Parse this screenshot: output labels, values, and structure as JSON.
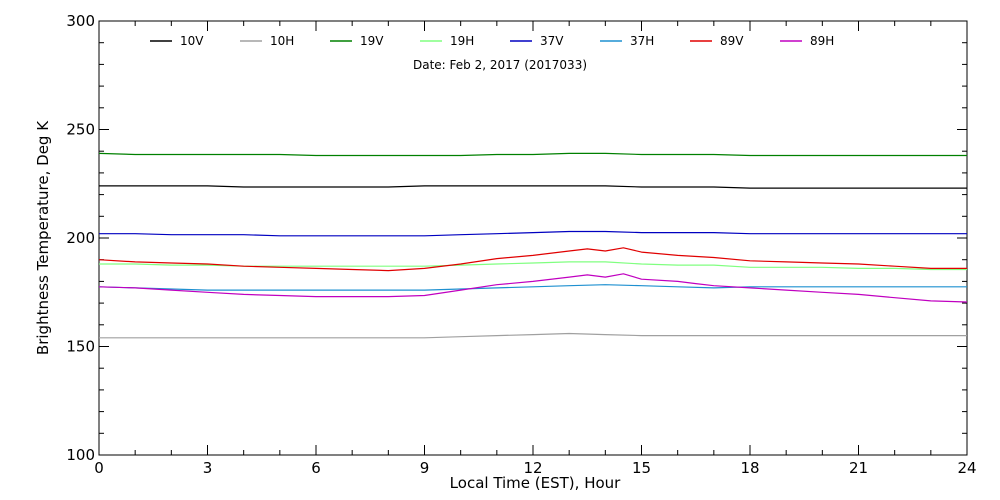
{
  "chart_data": {
    "type": "line",
    "title": "",
    "date_text": "Date: Feb  2, 2017 (2017033)",
    "xlabel": "Local Time (EST), Hour",
    "ylabel": "Brightness Temperature, Deg K",
    "xlim": [
      0,
      24
    ],
    "ylim": [
      100,
      300
    ],
    "xticks": [
      0,
      3,
      6,
      9,
      12,
      15,
      18,
      21,
      24
    ],
    "yticks": [
      100,
      150,
      200,
      250,
      300
    ],
    "grid": false,
    "legend_position": "top",
    "series": [
      {
        "name": "10V",
        "color": "#000000",
        "x": [
          0,
          1,
          2,
          3,
          4,
          5,
          6,
          7,
          8,
          9,
          10,
          11,
          12,
          13,
          14,
          15,
          16,
          17,
          18,
          19,
          20,
          21,
          22,
          23,
          24
        ],
        "y": [
          224,
          224,
          224,
          224,
          223.5,
          223.5,
          223.5,
          223.5,
          223.5,
          224,
          224,
          224,
          224,
          224,
          224,
          223.5,
          223.5,
          223.5,
          223,
          223,
          223,
          223,
          223,
          223,
          223
        ]
      },
      {
        "name": "10H",
        "color": "#a0a0a0",
        "x": [
          0,
          1,
          2,
          3,
          4,
          5,
          6,
          7,
          8,
          9,
          10,
          11,
          12,
          13,
          14,
          15,
          16,
          17,
          18,
          19,
          20,
          21,
          22,
          23,
          24
        ],
        "y": [
          154,
          154,
          154,
          154,
          154,
          154,
          154,
          154,
          154,
          154,
          154.5,
          155,
          155.5,
          156,
          155.5,
          155,
          155,
          155,
          155,
          155,
          155,
          155,
          155,
          155,
          155
        ]
      },
      {
        "name": "19V",
        "color": "#008000",
        "x": [
          0,
          1,
          2,
          3,
          4,
          5,
          6,
          7,
          8,
          9,
          10,
          11,
          12,
          13,
          14,
          15,
          16,
          17,
          18,
          19,
          20,
          21,
          22,
          23,
          24
        ],
        "y": [
          239,
          238.5,
          238.5,
          238.5,
          238.5,
          238.5,
          238,
          238,
          238,
          238,
          238,
          238.5,
          238.5,
          239,
          239,
          238.5,
          238.5,
          238.5,
          238,
          238,
          238,
          238,
          238,
          238,
          238
        ]
      },
      {
        "name": "19H",
        "color": "#80ff80",
        "x": [
          0,
          1,
          2,
          3,
          4,
          5,
          6,
          7,
          8,
          9,
          10,
          11,
          12,
          13,
          14,
          15,
          16,
          17,
          18,
          19,
          20,
          21,
          22,
          23,
          24
        ],
        "y": [
          188,
          188,
          187.5,
          187.5,
          187,
          187,
          187,
          187,
          187,
          187,
          187.5,
          188,
          188.5,
          189,
          189,
          188,
          187.5,
          187.5,
          186.5,
          186.5,
          186.5,
          186,
          186,
          185.5,
          185.5
        ]
      },
      {
        "name": "37V",
        "color": "#0000c0",
        "x": [
          0,
          1,
          2,
          3,
          4,
          5,
          6,
          7,
          8,
          9,
          10,
          11,
          12,
          13,
          14,
          15,
          16,
          17,
          18,
          19,
          20,
          21,
          22,
          23,
          24
        ],
        "y": [
          202,
          202,
          201.5,
          201.5,
          201.5,
          201,
          201,
          201,
          201,
          201,
          201.5,
          202,
          202.5,
          203,
          203,
          202.5,
          202.5,
          202.5,
          202,
          202,
          202,
          202,
          202,
          202,
          202
        ]
      },
      {
        "name": "37H",
        "color": "#1e90d0",
        "x": [
          0,
          1,
          2,
          3,
          4,
          5,
          6,
          7,
          8,
          9,
          10,
          11,
          12,
          13,
          14,
          15,
          16,
          17,
          18,
          19,
          20,
          21,
          22,
          23,
          24
        ],
        "y": [
          177.5,
          177,
          176.5,
          176,
          176,
          176,
          176,
          176,
          176,
          176,
          176.5,
          177,
          177.5,
          178,
          178.5,
          178,
          177.5,
          177,
          177.5,
          177.5,
          177.5,
          177.5,
          177.5,
          177.5,
          177.5
        ]
      },
      {
        "name": "89V",
        "color": "#e00000",
        "x": [
          0,
          1,
          2,
          3,
          4,
          5,
          6,
          7,
          8,
          9,
          10,
          11,
          12,
          13,
          13.5,
          14,
          14.5,
          15,
          16,
          17,
          18,
          19,
          20,
          21,
          22,
          23,
          24
        ],
        "y": [
          190,
          189,
          188.5,
          188,
          187,
          186.5,
          186,
          185.5,
          185,
          186,
          188,
          190.5,
          192,
          194,
          195,
          194,
          195.5,
          193.5,
          192,
          191,
          189.5,
          189,
          188.5,
          188,
          187,
          186,
          186
        ]
      },
      {
        "name": "89H",
        "color": "#c000c0",
        "x": [
          0,
          1,
          2,
          3,
          4,
          5,
          6,
          7,
          8,
          9,
          10,
          11,
          12,
          13,
          13.5,
          14,
          14.5,
          15,
          16,
          16.5,
          17,
          18,
          19,
          20,
          21,
          22,
          23,
          24
        ],
        "y": [
          177.5,
          177,
          176,
          175,
          174,
          173.5,
          173,
          173,
          173,
          173.5,
          176,
          178.5,
          180,
          182,
          183,
          182,
          183.5,
          181,
          180,
          179,
          178,
          177,
          176,
          175,
          174,
          172.5,
          171,
          170.5
        ]
      }
    ]
  }
}
